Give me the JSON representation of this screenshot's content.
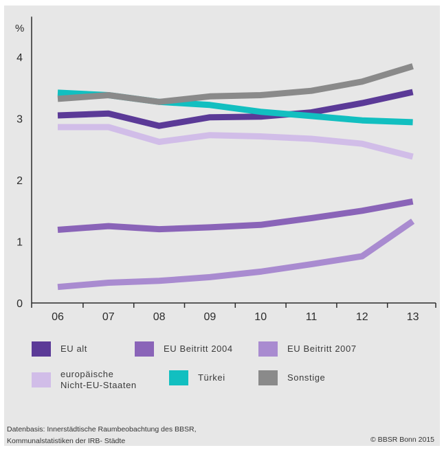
{
  "chart_data": {
    "type": "line",
    "ylabel": "%",
    "categories": [
      "06",
      "07",
      "08",
      "09",
      "10",
      "11",
      "12",
      "13"
    ],
    "ylim": [
      0,
      4.5
    ],
    "yticks": [
      0,
      1,
      2,
      3,
      4
    ],
    "grid": false,
    "legend_position": "bottom",
    "series": [
      {
        "name": "EU alt",
        "color": "#5b3a97",
        "values": [
          3.05,
          3.08,
          2.88,
          3.02,
          3.03,
          3.1,
          3.25,
          3.43
        ]
      },
      {
        "name": "EU Beitritt 2004",
        "color": "#8a64b8",
        "values": [
          1.19,
          1.25,
          1.2,
          1.23,
          1.27,
          1.38,
          1.5,
          1.65
        ]
      },
      {
        "name": "EU Beitritt 2007",
        "color": "#a98bd0",
        "values": [
          0.26,
          0.33,
          0.36,
          0.42,
          0.51,
          0.63,
          0.76,
          1.33
        ]
      },
      {
        "name": "europäische\nNicht-EU-Staaten",
        "color": "#d1bde8",
        "values": [
          2.86,
          2.86,
          2.62,
          2.73,
          2.71,
          2.67,
          2.59,
          2.38
        ]
      },
      {
        "name": "Türkei",
        "color": "#12bfc0",
        "values": [
          3.42,
          3.38,
          3.27,
          3.22,
          3.11,
          3.04,
          2.97,
          2.94
        ]
      },
      {
        "name": "Sonstige",
        "color": "#8a8a8a",
        "values": [
          3.32,
          3.38,
          3.27,
          3.36,
          3.38,
          3.45,
          3.6,
          3.85
        ]
      }
    ]
  },
  "footer": {
    "source": "Datenbasis: Innerstädtische Raumbeobachtung des BBSR,\nKommunalstatistiken der IRB- Städte",
    "copyright": "© BBSR Bonn 2015"
  }
}
